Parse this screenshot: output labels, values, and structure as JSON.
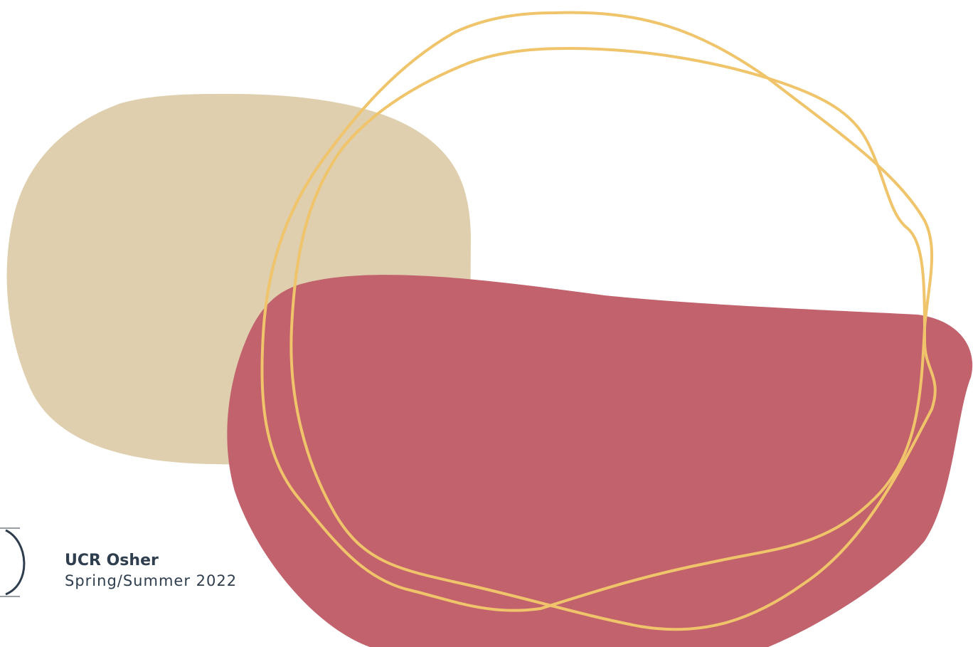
{
  "footer": {
    "title": "UCR Osher",
    "subtitle": "Spring/Summer 2022"
  }
}
